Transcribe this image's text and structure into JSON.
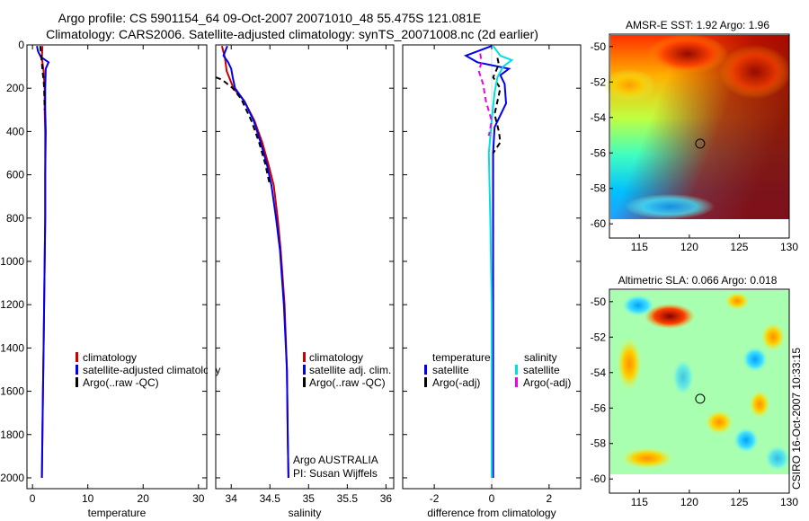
{
  "figure": {
    "title_line1": "Argo profile: CS 5901154_64 09-Oct-2007 20071010_48 55.475S 121.081E",
    "title_line2": "Climatology: CARS2006. Satellite-adjusted climatology: synTS_20071008.nc (2d earlier)",
    "timestamp": "CSIRO 16-Oct-2007 10:33:15",
    "agency_line1": "Argo AUSTRALIA",
    "agency_line2": "PI: Susan Wijffels"
  },
  "colors": {
    "climatology": "#cc0000",
    "satellite": "#0000ee",
    "argo": "#000000",
    "satellite_salinity": "#00e0e0",
    "argo_salinity": "#ee00ee"
  },
  "chart_data": [
    {
      "type": "line",
      "id": "temperature",
      "xlabel": "temperature",
      "ylabel": "",
      "xlim": [
        -1,
        31.5
      ],
      "ylim": [
        2050,
        0
      ],
      "xticks": [
        0,
        10,
        20,
        30
      ],
      "xticklabels": [
        "0",
        "10",
        "20",
        "30"
      ],
      "yticks": [
        0,
        200,
        400,
        600,
        800,
        1000,
        1200,
        1400,
        1600,
        1800,
        2000
      ],
      "yticklabels": [
        "0",
        "200",
        "400",
        "600",
        "800",
        "1000",
        "1200",
        "1400",
        "1600",
        "1800",
        "2000"
      ],
      "legend": [
        "climatology",
        "satellite-adjusted climatology",
        "Argo(..raw -QC)"
      ],
      "series": [
        {
          "name": "climatology",
          "color": "#cc0000",
          "style": "solid",
          "points": [
            [
              1.8,
              5
            ],
            [
              1.7,
              60
            ],
            [
              2.0,
              120
            ],
            [
              2.2,
              200
            ],
            [
              2.2,
              300
            ],
            [
              2.3,
              400
            ],
            [
              2.3,
              600
            ],
            [
              2.3,
              800
            ],
            [
              2.2,
              1000
            ],
            [
              2.1,
              1200
            ],
            [
              2.0,
              1400
            ],
            [
              1.9,
              1600
            ],
            [
              1.8,
              1800
            ],
            [
              1.7,
              2000
            ]
          ]
        },
        {
          "name": "satellite-adjusted climatology",
          "color": "#0000ee",
          "style": "solid",
          "points": [
            [
              0.8,
              5
            ],
            [
              1.0,
              30
            ],
            [
              1.5,
              55
            ],
            [
              2.9,
              80
            ],
            [
              2.4,
              110
            ],
            [
              2.3,
              200
            ],
            [
              2.3,
              300
            ],
            [
              2.4,
              400
            ],
            [
              2.3,
              600
            ],
            [
              2.3,
              800
            ],
            [
              2.2,
              1000
            ],
            [
              2.1,
              1200
            ],
            [
              2.0,
              1400
            ],
            [
              1.9,
              1600
            ],
            [
              1.8,
              1800
            ],
            [
              1.7,
              2000
            ]
          ]
        },
        {
          "name": "Argo(..raw -QC)",
          "color": "#000000",
          "style": "dashed",
          "points": [
            [
              1.4,
              5
            ],
            [
              1.6,
              60
            ],
            [
              1.9,
              140
            ],
            [
              2.0,
              160
            ],
            [
              2.1,
              200
            ],
            [
              2.2,
              300
            ]
          ]
        }
      ]
    },
    {
      "type": "line",
      "id": "salinity",
      "xlabel": "salinity",
      "xlim": [
        33.8,
        36.1
      ],
      "ylim": [
        2050,
        0
      ],
      "xticks": [
        34,
        34.5,
        35,
        35.5,
        36
      ],
      "xticklabels": [
        "34",
        "34.5",
        "35",
        "35.5",
        "36"
      ],
      "legend": [
        "climatology",
        "satellite adj. clim.",
        "Argo(..raw -QC)"
      ],
      "series": [
        {
          "name": "climatology",
          "color": "#cc0000",
          "style": "solid",
          "points": [
            [
              33.88,
              5
            ],
            [
              33.92,
              60
            ],
            [
              33.94,
              120
            ],
            [
              34.03,
              200
            ],
            [
              34.17,
              260
            ],
            [
              34.3,
              350
            ],
            [
              34.4,
              450
            ],
            [
              34.48,
              550
            ],
            [
              34.55,
              650
            ],
            [
              34.6,
              800
            ],
            [
              34.64,
              950
            ],
            [
              34.69,
              1200
            ],
            [
              34.72,
              1500
            ],
            [
              34.73,
              1800
            ],
            [
              34.74,
              2000
            ]
          ]
        },
        {
          "name": "satellite adj. clim.",
          "color": "#0000ee",
          "style": "solid",
          "points": [
            [
              33.95,
              5
            ],
            [
              33.9,
              50
            ],
            [
              33.96,
              80
            ],
            [
              34.0,
              110
            ],
            [
              34.02,
              150
            ],
            [
              34.05,
              200
            ],
            [
              34.17,
              260
            ],
            [
              34.29,
              350
            ],
            [
              34.38,
              450
            ],
            [
              34.46,
              550
            ],
            [
              34.52,
              650
            ],
            [
              34.58,
              800
            ],
            [
              34.63,
              950
            ],
            [
              34.68,
              1200
            ],
            [
              34.72,
              1500
            ],
            [
              34.73,
              1800
            ],
            [
              34.74,
              2000
            ]
          ]
        },
        {
          "name": "Argo(..raw -QC)",
          "color": "#000000",
          "style": "dashed",
          "points": [
            [
              33.8,
              150
            ],
            [
              33.88,
              160
            ],
            [
              34.02,
              200
            ],
            [
              34.13,
              250
            ],
            [
              34.26,
              350
            ],
            [
              34.36,
              450
            ],
            [
              34.44,
              550
            ],
            [
              34.5,
              650
            ]
          ]
        }
      ]
    },
    {
      "type": "line",
      "id": "difference",
      "xlabel": "difference from climatology",
      "xlim": [
        -3.1,
        3.1
      ],
      "ylim": [
        2050,
        0
      ],
      "xticks": [
        -2,
        0,
        2
      ],
      "xticklabels": [
        "-2",
        "0",
        "2"
      ],
      "legend_left_header": "temperature",
      "legend_right_header": "salinity",
      "legend_left": [
        "satellite",
        "Argo(-adj)"
      ],
      "legend_right": [
        "satellite",
        "Argo(-adj)"
      ],
      "series": [
        {
          "name": "temperature satellite",
          "color": "#0000ee",
          "style": "solid",
          "points": [
            [
              0.0,
              5
            ],
            [
              -0.9,
              50
            ],
            [
              -0.5,
              80
            ],
            [
              0.6,
              110
            ],
            [
              0.3,
              140
            ],
            [
              0.45,
              180
            ],
            [
              0.5,
              270
            ],
            [
              0.1,
              380
            ],
            [
              0.05,
              500
            ],
            [
              0.05,
              800
            ],
            [
              0.05,
              1200
            ],
            [
              0.05,
              1600
            ],
            [
              0.05,
              2000
            ]
          ]
        },
        {
          "name": "temperature Argo(-adj)",
          "color": "#000000",
          "style": "dashed",
          "points": [
            [
              0.2,
              60
            ],
            [
              0.25,
              90
            ],
            [
              0.15,
              120
            ],
            [
              0.05,
              150
            ],
            [
              0.3,
              200
            ],
            [
              0.2,
              260
            ],
            [
              0.1,
              320
            ],
            [
              0.25,
              400
            ],
            [
              0.3,
              450
            ],
            [
              0.05,
              500
            ]
          ]
        },
        {
          "name": "salinity satellite",
          "color": "#00e0e0",
          "style": "solid",
          "points": [
            [
              0.05,
              5
            ],
            [
              0.3,
              50
            ],
            [
              0.7,
              70
            ],
            [
              0.4,
              100
            ],
            [
              0.2,
              150
            ],
            [
              0.1,
              220
            ],
            [
              0.0,
              350
            ],
            [
              -0.1,
              500
            ],
            [
              -0.05,
              800
            ],
            [
              0.0,
              1200
            ],
            [
              0.0,
              1600
            ],
            [
              0.0,
              2000
            ]
          ]
        },
        {
          "name": "salinity Argo(-adj)",
          "color": "#ee00ee",
          "style": "dashed",
          "points": [
            [
              -0.4,
              40
            ],
            [
              -0.35,
              80
            ],
            [
              -0.45,
              120
            ],
            [
              -0.3,
              180
            ],
            [
              -0.2,
              260
            ],
            [
              0.0,
              350
            ],
            [
              -0.1,
              420
            ]
          ]
        }
      ]
    },
    {
      "type": "heatmap",
      "id": "amsre-sst",
      "title": "AMSR-E SST: 1.92 Argo: 1.96",
      "xlim": [
        112,
        130
      ],
      "ylim": [
        -60.8,
        -49.3
      ],
      "data_extent_y": [
        -60,
        -49.3
      ],
      "xticks": [
        115,
        120,
        125,
        130
      ],
      "xticklabels": [
        "115",
        "120",
        "125",
        "130"
      ],
      "yticks": [
        -50,
        -52,
        -54,
        -56,
        -58,
        -60
      ],
      "yticklabels": [
        "-50",
        "-52",
        "-54",
        "-56",
        "-58",
        "-60"
      ],
      "marker_location": [
        121.081,
        -55.475
      ]
    },
    {
      "type": "heatmap",
      "id": "altimetric-sla",
      "title": "Altimetric SLA: 0.066 Argo: 0.018",
      "xlim": [
        112,
        130
      ],
      "ylim": [
        -60.8,
        -49.3
      ],
      "data_extent_y": [
        -60,
        -49.3
      ],
      "xticks": [
        115,
        120,
        125,
        130
      ],
      "xticklabels": [
        "115",
        "120",
        "125",
        "130"
      ],
      "yticks": [
        -50,
        -52,
        -54,
        -56,
        -58,
        -60
      ],
      "yticklabels": [
        "-50",
        "-52",
        "-54",
        "-56",
        "-58",
        "-60"
      ],
      "marker_location": [
        121.081,
        -55.475
      ]
    }
  ]
}
